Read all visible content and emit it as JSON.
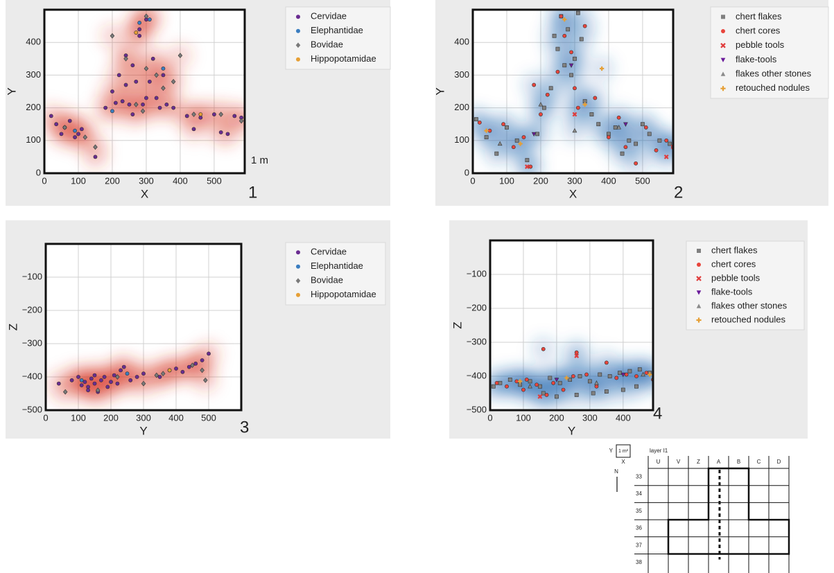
{
  "chart_data": [
    {
      "type": "scatter",
      "panel_label": "1",
      "annotation": "1 m",
      "xlabel": "X",
      "ylabel": "Y",
      "xlim": [
        0,
        590
      ],
      "ylim": [
        0,
        500
      ],
      "xticks": [
        0,
        100,
        200,
        300,
        400,
        500
      ],
      "yticks": [
        0,
        100,
        200,
        300,
        400
      ],
      "grid": true,
      "density_color": "#d7301f",
      "series": [
        {
          "name": "Cervidae",
          "color": "#6a2c91",
          "marker": "circle",
          "x": [
            20,
            35,
            50,
            60,
            75,
            90,
            100,
            110,
            180,
            200,
            210,
            220,
            230,
            240,
            250,
            260,
            270,
            280,
            290,
            300,
            310,
            320,
            330,
            340,
            350,
            360,
            300,
            280,
            260,
            240,
            420,
            440,
            460,
            500,
            520,
            540,
            560,
            580,
            150,
            380
          ],
          "y": [
            175,
            150,
            120,
            140,
            160,
            110,
            120,
            135,
            200,
            250,
            215,
            300,
            220,
            360,
            210,
            330,
            280,
            440,
            210,
            230,
            280,
            350,
            230,
            200,
            300,
            210,
            470,
            420,
            180,
            270,
            175,
            135,
            170,
            180,
            125,
            120,
            175,
            170,
            50,
            200
          ]
        },
        {
          "name": "Elephantidae",
          "color": "#3a7dc0",
          "marker": "circle",
          "x": [
            280,
            310,
            90,
            350,
            200
          ],
          "y": [
            460,
            470,
            130,
            320,
            190
          ]
        },
        {
          "name": "Bovidae",
          "color": "#7a7a7a",
          "marker": "diamond",
          "x": [
            60,
            120,
            150,
            200,
            240,
            270,
            290,
            300,
            330,
            350,
            380,
            400,
            440,
            520,
            580,
            300
          ],
          "y": [
            140,
            110,
            80,
            420,
            350,
            210,
            190,
            320,
            300,
            260,
            280,
            360,
            180,
            180,
            160,
            480
          ]
        },
        {
          "name": "Hippopotamidae",
          "color": "#e69f35",
          "marker": "circle",
          "x": [
            460,
            270
          ],
          "y": [
            180,
            430
          ]
        }
      ]
    },
    {
      "type": "scatter",
      "panel_label": "2",
      "xlabel": "X",
      "ylabel": "Y",
      "xlim": [
        0,
        590
      ],
      "ylim": [
        0,
        500
      ],
      "xticks": [
        0,
        100,
        200,
        300,
        400,
        500
      ],
      "yticks": [
        0,
        100,
        200,
        300,
        400
      ],
      "grid": true,
      "density_color": "#2166ac",
      "series": [
        {
          "name": "chert flakes",
          "color": "#808080",
          "marker": "square",
          "x": [
            10,
            40,
            70,
            100,
            130,
            160,
            190,
            210,
            230,
            250,
            260,
            270,
            280,
            290,
            300,
            310,
            320,
            330,
            350,
            370,
            400,
            420,
            440,
            460,
            480,
            500,
            520,
            550,
            580,
            240
          ],
          "y": [
            165,
            110,
            60,
            140,
            100,
            40,
            120,
            200,
            260,
            380,
            480,
            330,
            440,
            300,
            350,
            490,
            410,
            220,
            180,
            150,
            120,
            140,
            60,
            100,
            90,
            150,
            120,
            100,
            90,
            420
          ]
        },
        {
          "name": "chert cores",
          "color": "#e8453c",
          "marker": "circle",
          "x": [
            20,
            50,
            90,
            120,
            150,
            170,
            200,
            220,
            250,
            270,
            290,
            310,
            330,
            360,
            400,
            430,
            450,
            480,
            510,
            540,
            570,
            590,
            180,
            260,
            300
          ],
          "y": [
            155,
            130,
            150,
            80,
            110,
            20,
            180,
            240,
            310,
            420,
            370,
            200,
            450,
            230,
            110,
            170,
            80,
            30,
            140,
            70,
            100,
            80,
            270,
            480,
            260
          ]
        },
        {
          "name": "pebble tools",
          "color": "#e03c3c",
          "marker": "x",
          "x": [
            590,
            570,
            160,
            300
          ],
          "y": [
            80,
            50,
            20,
            180
          ]
        },
        {
          "name": "flake-tools",
          "color": "#6a1b9a",
          "marker": "tridown",
          "x": [
            180,
            450,
            290
          ],
          "y": [
            120,
            150,
            330
          ]
        },
        {
          "name": "flakes other stones",
          "color": "#8c8c8c",
          "marker": "triangle",
          "x": [
            300,
            430,
            200,
            80
          ],
          "y": [
            130,
            140,
            210,
            90
          ]
        },
        {
          "name": "retouched nodules",
          "color": "#e69f35",
          "marker": "plus",
          "x": [
            40,
            140,
            270,
            330,
            380
          ],
          "y": [
            130,
            90,
            470,
            210,
            320
          ]
        }
      ]
    },
    {
      "type": "scatter",
      "panel_label": "3",
      "xlabel": "Y",
      "ylabel": "Z",
      "xlim": [
        0,
        600
      ],
      "ylim": [
        -500,
        0
      ],
      "xticks": [
        0,
        100,
        200,
        300,
        400,
        500
      ],
      "yticks": [
        {
          "value": -500,
          "label": "−500"
        },
        {
          "value": -400,
          "label": "−400"
        },
        {
          "value": -300,
          "label": "−300"
        },
        {
          "value": -200,
          "label": "−200"
        },
        {
          "value": -100,
          "label": "−100"
        }
      ],
      "grid": true,
      "density_color": "#d7301f",
      "series": [
        {
          "name": "Cervidae",
          "color": "#6a2c91",
          "marker": "circle",
          "x": [
            40,
            80,
            100,
            110,
            120,
            130,
            140,
            150,
            160,
            170,
            180,
            190,
            200,
            210,
            220,
            230,
            240,
            260,
            280,
            300,
            350,
            380,
            400,
            420,
            440,
            460,
            480,
            500,
            130,
            150
          ],
          "y": [
            -420,
            -410,
            -400,
            -425,
            -415,
            -430,
            -405,
            -420,
            -445,
            -410,
            -400,
            -430,
            -415,
            -395,
            -420,
            -380,
            -370,
            -410,
            -400,
            -390,
            -400,
            -380,
            -375,
            -385,
            -370,
            -360,
            -350,
            -330,
            -440,
            -395
          ]
        },
        {
          "name": "Elephantidae",
          "color": "#3a7dc0",
          "marker": "circle",
          "x": [
            110,
            250
          ],
          "y": [
            -410,
            -390
          ]
        },
        {
          "name": "Bovidae",
          "color": "#7a7a7a",
          "marker": "diamond",
          "x": [
            60,
            160,
            220,
            300,
            340,
            360,
            450,
            490,
            480
          ],
          "y": [
            -445,
            -440,
            -400,
            -420,
            -395,
            -390,
            -365,
            -410,
            -380
          ]
        },
        {
          "name": "Hippopotamidae",
          "color": "#e69f35",
          "marker": "circle",
          "x": [
            380
          ],
          "y": [
            -380
          ]
        }
      ]
    },
    {
      "type": "scatter",
      "panel_label": "4",
      "xlabel": "Y",
      "ylabel": "Z",
      "xlim": [
        0,
        490
      ],
      "ylim": [
        -500,
        0
      ],
      "xticks": [
        0,
        100,
        200,
        300,
        400
      ],
      "yticks": [
        {
          "value": -500,
          "label": "−500"
        },
        {
          "value": -400,
          "label": "−400"
        },
        {
          "value": -300,
          "label": "−300"
        },
        {
          "value": -200,
          "label": "−200"
        },
        {
          "value": -100,
          "label": "−100"
        }
      ],
      "grid": true,
      "density_color": "#2166ac",
      "series": [
        {
          "name": "chert flakes",
          "color": "#808080",
          "marker": "square",
          "x": [
            10,
            30,
            60,
            90,
            120,
            150,
            180,
            210,
            240,
            270,
            300,
            330,
            360,
            390,
            420,
            450,
            480,
            160,
            200,
            260,
            310,
            350,
            400,
            440
          ],
          "y": [
            -430,
            -420,
            -410,
            -425,
            -415,
            -430,
            -405,
            -420,
            -410,
            -400,
            -415,
            -395,
            -400,
            -390,
            -385,
            -380,
            -390,
            -450,
            -460,
            -455,
            -450,
            -445,
            -440,
            -430
          ]
        },
        {
          "name": "chert cores",
          "color": "#e8453c",
          "marker": "circle",
          "x": [
            20,
            50,
            80,
            110,
            140,
            160,
            190,
            220,
            250,
            260,
            290,
            320,
            350,
            380,
            410,
            440,
            470,
            490,
            100,
            170
          ],
          "y": [
            -420,
            -430,
            -415,
            -410,
            -425,
            -320,
            -420,
            -440,
            -400,
            -330,
            -395,
            -430,
            -360,
            -405,
            -395,
            -400,
            -390,
            -410,
            -440,
            -455
          ]
        },
        {
          "name": "pebble tools",
          "color": "#e03c3c",
          "marker": "x",
          "x": [
            150,
            260
          ],
          "y": [
            -460,
            -340
          ]
        },
        {
          "name": "flake-tools",
          "color": "#6a1b9a",
          "marker": "tridown",
          "x": [
            200,
            400
          ],
          "y": [
            -410,
            -395
          ]
        },
        {
          "name": "flakes other stones",
          "color": "#8c8c8c",
          "marker": "triangle",
          "x": [
            120,
            320,
            460
          ],
          "y": [
            -430,
            -420,
            -395
          ]
        },
        {
          "name": "retouched nodules",
          "color": "#e69f35",
          "marker": "plus",
          "x": [
            90,
            230,
            480
          ],
          "y": [
            -415,
            -405,
            -395
          ]
        }
      ]
    }
  ],
  "site_map": {
    "scale_axis_y": "Y",
    "scale_unit": "1 m²",
    "scale_axis_x": "X",
    "title": "layer I1",
    "north": "N",
    "columns": [
      "U",
      "V",
      "Z",
      "A",
      "B",
      "C",
      "D"
    ],
    "rows": [
      "33",
      "34",
      "35",
      "36",
      "37",
      "38"
    ]
  }
}
